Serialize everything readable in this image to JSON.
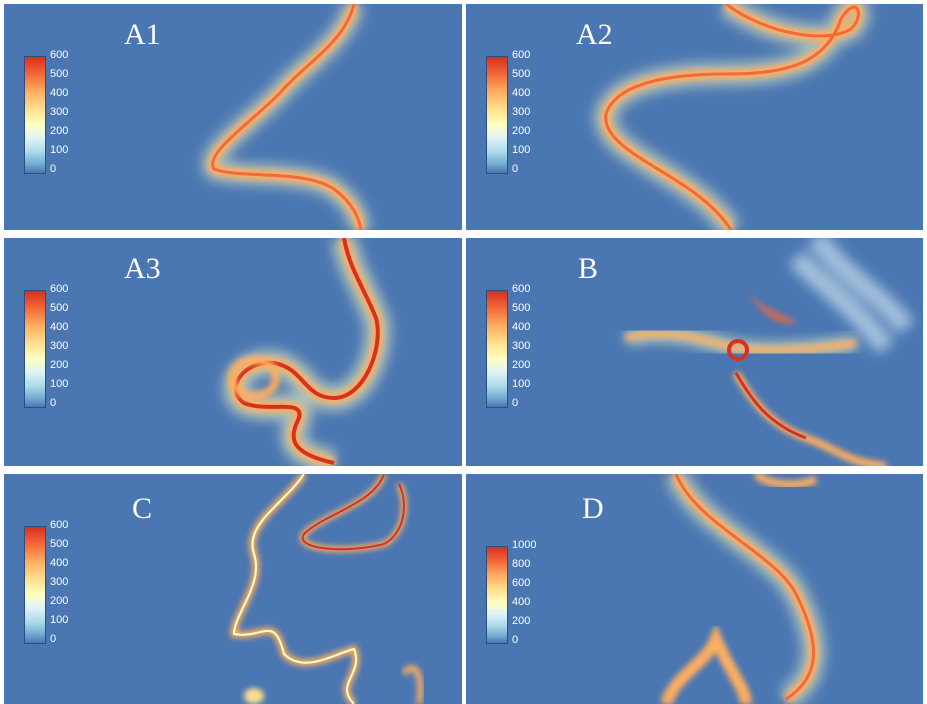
{
  "colors": {
    "background": "#4a76b2",
    "colormap": [
      "#d7301f",
      "#f4693a",
      "#fdae61",
      "#fee090",
      "#ffffbf",
      "#e0f3f8",
      "#abd9e9",
      "#74add1",
      "#4a76b2"
    ]
  },
  "panels": [
    {
      "id": "A1",
      "title": "A1",
      "colorbar_ticks": [
        "600",
        "500",
        "400",
        "300",
        "200",
        "100",
        "0"
      ]
    },
    {
      "id": "A2",
      "title": "A2",
      "colorbar_ticks": [
        "600",
        "500",
        "400",
        "300",
        "200",
        "100",
        "0"
      ]
    },
    {
      "id": "A3",
      "title": "A3",
      "colorbar_ticks": [
        "600",
        "500",
        "400",
        "300",
        "200",
        "100",
        "0"
      ]
    },
    {
      "id": "B",
      "title": "B",
      "colorbar_ticks": [
        "600",
        "500",
        "400",
        "300",
        "200",
        "100",
        "0"
      ]
    },
    {
      "id": "C",
      "title": "C",
      "colorbar_ticks": [
        "600",
        "500",
        "400",
        "300",
        "200",
        "100",
        "0"
      ]
    },
    {
      "id": "D",
      "title": "D",
      "colorbar_ticks": [
        "1000",
        "800",
        "600",
        "400",
        "200",
        "0"
      ]
    }
  ]
}
